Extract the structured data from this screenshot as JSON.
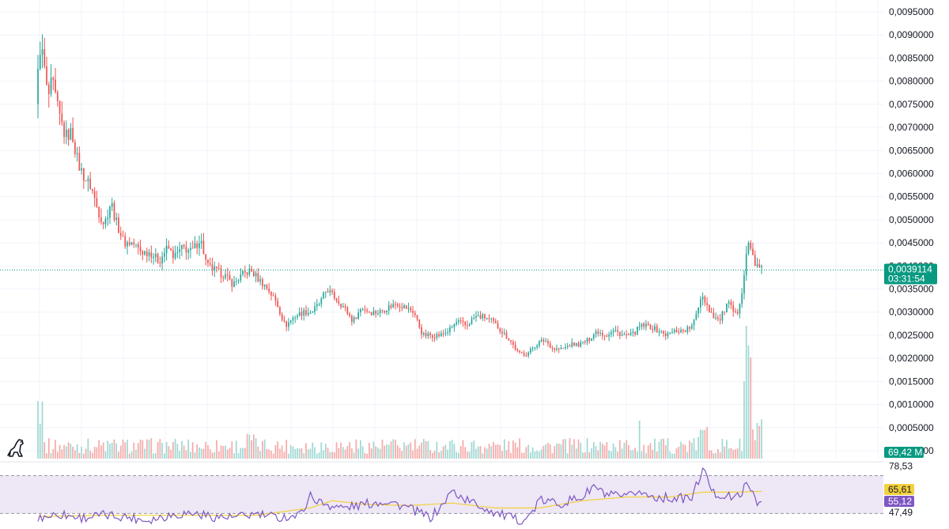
{
  "colors": {
    "up": "#26a69a",
    "down": "#ef5350",
    "up_volume": "#9fd8d2",
    "down_volume": "#f5aaa8",
    "grid": "#f0f3fa",
    "price_line": "#089981",
    "rsi_line": "#7e57c2",
    "rsi_ma": "#f2d13c",
    "rsi_band": "#ede7f6"
  },
  "logo": {
    "icon": "dinosaur-icon"
  },
  "chart_data": {
    "type": "candlestick",
    "title": "",
    "price_axis": {
      "ylim": [
        0,
        0.0097
      ],
      "tick_labels": [
        "0,0095000",
        "0,0090000",
        "0,0085000",
        "0,0080000",
        "0,0075000",
        "0,0070000",
        "0,0065000",
        "0,0060000",
        "0,0055000",
        "0,0050000",
        "0,0045000",
        "0,0040000",
        "0,0035000",
        "0,0030000",
        "0,0025000",
        "0,0020000",
        "0,0015000",
        "0,0010000",
        "0,0005000",
        "0,0000000"
      ],
      "tick_values": [
        0.0095,
        0.009,
        0.0085,
        0.008,
        0.0075,
        0.007,
        0.0065,
        0.006,
        0.0055,
        0.005,
        0.0045,
        0.004,
        0.0035,
        0.003,
        0.0025,
        0.002,
        0.0015,
        0.001,
        0.0005,
        0.0
      ]
    },
    "grid": true,
    "last_price": {
      "value": 0.0039114,
      "label": "0,0039114",
      "countdown": "03:31:54"
    },
    "volume": {
      "last_label": "69,42 M"
    },
    "price_path": [
      [
        0,
        0.0075
      ],
      [
        1,
        0.0088
      ],
      [
        3,
        0.0085
      ],
      [
        5,
        0.0076
      ],
      [
        7,
        0.008
      ],
      [
        10,
        0.0073
      ],
      [
        13,
        0.0068
      ],
      [
        16,
        0.0069
      ],
      [
        19,
        0.0062
      ],
      [
        22,
        0.0059
      ],
      [
        25,
        0.0057
      ],
      [
        28,
        0.0052
      ],
      [
        31,
        0.0049
      ],
      [
        34,
        0.0054
      ],
      [
        36,
        0.005
      ],
      [
        40,
        0.0045
      ],
      [
        44,
        0.0045
      ],
      [
        48,
        0.0043
      ],
      [
        52,
        0.0043
      ],
      [
        56,
        0.0041
      ],
      [
        60,
        0.0044
      ],
      [
        63,
        0.0042
      ],
      [
        67,
        0.0044
      ],
      [
        71,
        0.0043
      ],
      [
        75,
        0.0046
      ],
      [
        78,
        0.004
      ],
      [
        82,
        0.0039
      ],
      [
        86,
        0.0038
      ],
      [
        90,
        0.0036
      ],
      [
        94,
        0.0038
      ],
      [
        98,
        0.0039
      ],
      [
        102,
        0.0037
      ],
      [
        106,
        0.0035
      ],
      [
        110,
        0.0032
      ],
      [
        114,
        0.0027
      ],
      [
        118,
        0.0029
      ],
      [
        122,
        0.003
      ],
      [
        126,
        0.003
      ],
      [
        130,
        0.0032
      ],
      [
        133,
        0.0035
      ],
      [
        137,
        0.0033
      ],
      [
        141,
        0.0031
      ],
      [
        145,
        0.0028
      ],
      [
        149,
        0.0031
      ],
      [
        153,
        0.003
      ],
      [
        157,
        0.003
      ],
      [
        161,
        0.0031
      ],
      [
        165,
        0.0032
      ],
      [
        169,
        0.0031
      ],
      [
        173,
        0.003
      ],
      [
        177,
        0.0025
      ],
      [
        181,
        0.0025
      ],
      [
        185,
        0.0025
      ],
      [
        189,
        0.0026
      ],
      [
        193,
        0.0028
      ],
      [
        197,
        0.0027
      ],
      [
        201,
        0.0029
      ],
      [
        205,
        0.0029
      ],
      [
        209,
        0.0028
      ],
      [
        213,
        0.0026
      ],
      [
        217,
        0.0024
      ],
      [
        221,
        0.0021
      ],
      [
        225,
        0.0021
      ],
      [
        229,
        0.0023
      ],
      [
        233,
        0.0024
      ],
      [
        237,
        0.0022
      ],
      [
        241,
        0.0022
      ],
      [
        245,
        0.0023
      ],
      [
        249,
        0.0023
      ],
      [
        253,
        0.0024
      ],
      [
        257,
        0.0026
      ],
      [
        261,
        0.0025
      ],
      [
        265,
        0.0026
      ],
      [
        269,
        0.0025
      ],
      [
        273,
        0.0025
      ],
      [
        277,
        0.0027
      ],
      [
        281,
        0.0027
      ],
      [
        285,
        0.0026
      ],
      [
        289,
        0.0025
      ],
      [
        293,
        0.0026
      ],
      [
        297,
        0.0026
      ],
      [
        301,
        0.0027
      ],
      [
        305,
        0.0034
      ],
      [
        309,
        0.003
      ],
      [
        313,
        0.0028
      ],
      [
        317,
        0.0032
      ],
      [
        321,
        0.0029
      ],
      [
        324,
        0.0036
      ],
      [
        326,
        0.0045
      ],
      [
        328,
        0.0043
      ],
      [
        330,
        0.004
      ],
      [
        332,
        0.0039114
      ]
    ],
    "rsi": {
      "levels": [
        {
          "value": 78.53,
          "label": "78,53"
        },
        {
          "value": 47.49,
          "label": "47,49"
        }
      ],
      "current": {
        "value": 55.12,
        "label": "55,12"
      },
      "ma": {
        "value": 65.61,
        "label": "65,61"
      },
      "ylim": [
        38,
        86
      ],
      "path": [
        [
          0,
          44
        ],
        [
          10,
          47
        ],
        [
          20,
          44
        ],
        [
          30,
          46
        ],
        [
          40,
          45
        ],
        [
          50,
          42
        ],
        [
          60,
          46
        ],
        [
          70,
          48
        ],
        [
          80,
          45
        ],
        [
          90,
          44
        ],
        [
          100,
          47
        ],
        [
          110,
          44
        ],
        [
          120,
          46
        ],
        [
          125,
          62
        ],
        [
          130,
          56
        ],
        [
          140,
          52
        ],
        [
          150,
          55
        ],
        [
          160,
          58
        ],
        [
          170,
          52
        ],
        [
          180,
          44
        ],
        [
          185,
          53
        ],
        [
          190,
          66
        ],
        [
          195,
          60
        ],
        [
          200,
          56
        ],
        [
          210,
          48
        ],
        [
          220,
          42
        ],
        [
          225,
          44
        ],
        [
          230,
          58
        ],
        [
          240,
          56
        ],
        [
          250,
          61
        ],
        [
          255,
          70
        ],
        [
          260,
          63
        ],
        [
          270,
          60
        ],
        [
          275,
          66
        ],
        [
          280,
          62
        ],
        [
          290,
          60
        ],
        [
          300,
          60
        ],
        [
          305,
          84
        ],
        [
          310,
          64
        ],
        [
          315,
          62
        ],
        [
          320,
          60
        ],
        [
          325,
          70
        ],
        [
          328,
          66
        ],
        [
          330,
          58
        ],
        [
          332,
          55.12
        ]
      ],
      "ma_path": [
        [
          0,
          45
        ],
        [
          30,
          46
        ],
        [
          60,
          46
        ],
        [
          100,
          46
        ],
        [
          125,
          52
        ],
        [
          135,
          58
        ],
        [
          150,
          55
        ],
        [
          170,
          54
        ],
        [
          190,
          56
        ],
        [
          210,
          52
        ],
        [
          230,
          52
        ],
        [
          250,
          58
        ],
        [
          270,
          61
        ],
        [
          290,
          61
        ],
        [
          305,
          65
        ],
        [
          320,
          65
        ],
        [
          332,
          65.61
        ]
      ]
    }
  }
}
